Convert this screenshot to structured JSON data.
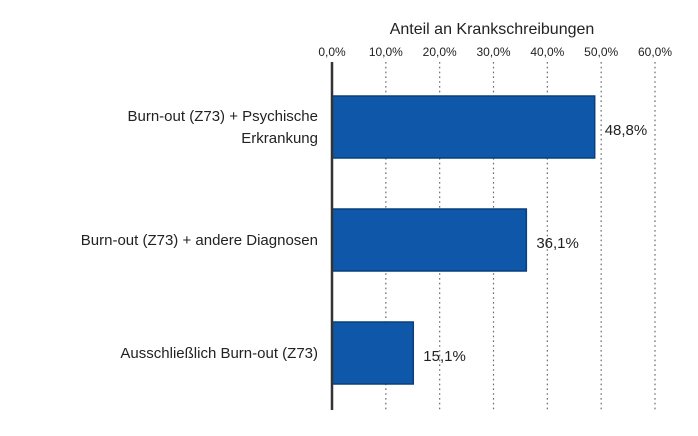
{
  "chart_data": {
    "type": "bar",
    "orientation": "horizontal",
    "title": "",
    "xlabel": "Anteil an Krankschreibungen",
    "ylabel": "",
    "xlim": [
      0,
      60
    ],
    "x_ticks": [
      0,
      10,
      20,
      30,
      40,
      50,
      60
    ],
    "x_tick_labels": [
      "0,0%",
      "10,0%",
      "20,0%",
      "30,0%",
      "40,0%",
      "50,0%",
      "60,0%"
    ],
    "x_axis_position": "top",
    "grid": "vertical dotted",
    "categories": [
      [
        "Burn-out (Z73) + Psychische",
        "Erkrankung"
      ],
      [
        "Burn-out (Z73) + andere Diagnosen"
      ],
      [
        "Ausschließlich Burn-out (Z73)"
      ]
    ],
    "values": [
      48.8,
      36.1,
      15.1
    ],
    "value_labels": [
      "48,8%",
      "36,1%",
      "15,1%"
    ],
    "bar_color": "#0f57a8"
  }
}
